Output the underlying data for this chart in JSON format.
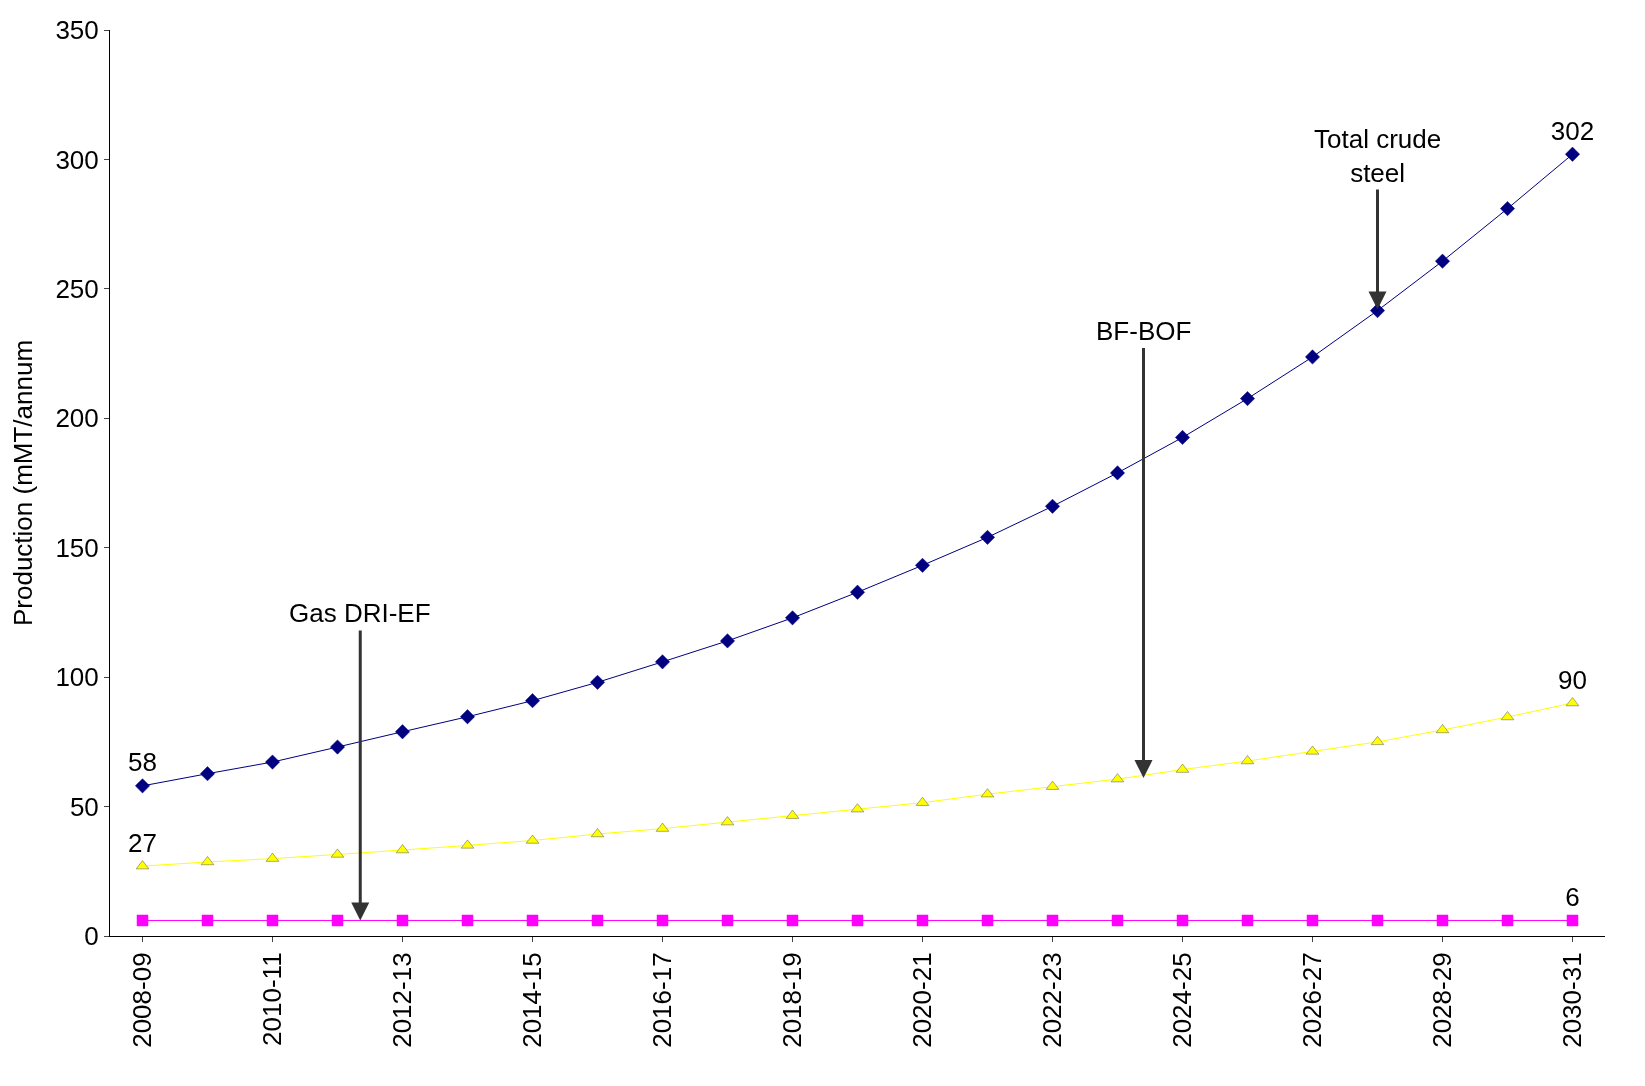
{
  "chart_data": {
    "type": "line",
    "ylabel": "Production (mMT/annum",
    "categories": [
      "2008-09",
      null,
      "2010-11",
      null,
      "2012-13",
      null,
      "2014-15",
      null,
      "2016-17",
      null,
      "2018-19",
      null,
      "2020-21",
      null,
      "2022-23",
      null,
      "2024-25",
      null,
      "2026-27",
      null,
      "2028-29",
      null,
      "2030-31"
    ],
    "series": [
      {
        "color": "#000080",
        "marker": "diamond",
        "values": [
          58,
          62.7,
          67.2,
          73,
          78.9,
          84.7,
          90.9,
          98,
          105.9,
          114,
          122.9,
          132.8,
          143.2,
          154,
          166,
          178.9,
          192.6,
          207.6,
          223.7,
          241.6,
          260.7,
          281,
          302
        ],
        "value_labels": [
          "58",
          null,
          null,
          null,
          null,
          null,
          null,
          null,
          null,
          null,
          null,
          null,
          null,
          null,
          null,
          null,
          null,
          null,
          null,
          null,
          null,
          null,
          "302"
        ]
      },
      {
        "color": "#ffff00",
        "marker": "triangle",
        "values": [
          27,
          28.6,
          29.9,
          31.5,
          33.2,
          35,
          36.9,
          39.4,
          41.5,
          44,
          46.5,
          49,
          51.5,
          54.8,
          57.7,
          60.6,
          64.3,
          67.6,
          71.3,
          75,
          79.6,
          84.6,
          90
        ],
        "value_labels": [
          "27",
          null,
          null,
          null,
          null,
          null,
          null,
          null,
          null,
          null,
          null,
          null,
          null,
          null,
          null,
          null,
          null,
          null,
          null,
          null,
          null,
          null,
          "90"
        ]
      },
      {
        "color": "#ff00ff",
        "marker": "square",
        "values": [
          6,
          6,
          6,
          6,
          6,
          6,
          6,
          6,
          6,
          6,
          6,
          6,
          6,
          6,
          6,
          6,
          6,
          6,
          6,
          6,
          6,
          6,
          6
        ],
        "value_labels": [
          null,
          null,
          null,
          null,
          null,
          null,
          null,
          null,
          null,
          null,
          null,
          null,
          null,
          null,
          null,
          null,
          null,
          null,
          null,
          null,
          null,
          null,
          "6"
        ]
      }
    ],
    "annotations": [
      {
        "text": "Gas DRI-EF",
        "y": 6
      },
      {
        "text": "BF-BOF",
        "y": 61
      },
      {
        "text": "Total crude\nsteel",
        "y": 242
      }
    ],
    "ylim": [
      0,
      350
    ],
    "yticks": [
      0,
      50,
      100,
      150,
      200,
      250,
      300,
      350
    ],
    "legend": false
  }
}
